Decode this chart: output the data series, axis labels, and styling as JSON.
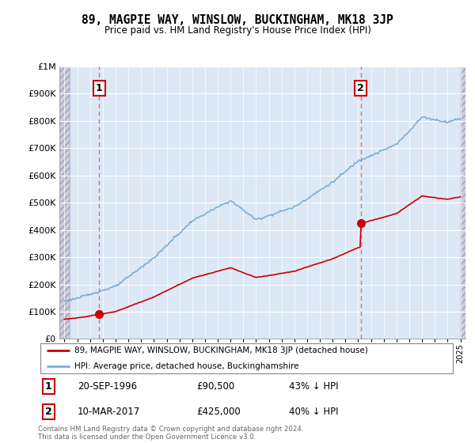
{
  "title": "89, MAGPIE WAY, WINSLOW, BUCKINGHAM, MK18 3JP",
  "subtitle": "Price paid vs. HM Land Registry's House Price Index (HPI)",
  "yticks": [
    0,
    100000,
    200000,
    300000,
    400000,
    500000,
    600000,
    700000,
    800000,
    900000,
    1000000
  ],
  "xlim_start": 1993.6,
  "xlim_end": 2025.4,
  "purchase1_year": 1996.72,
  "purchase1_price": 90500,
  "purchase1_label": "1",
  "purchase1_date": "20-SEP-1996",
  "purchase1_price_str": "£90,500",
  "purchase1_pct": "43% ↓ HPI",
  "purchase2_year": 2017.19,
  "purchase2_price": 425000,
  "purchase2_label": "2",
  "purchase2_date": "10-MAR-2017",
  "purchase2_price_str": "£425,000",
  "purchase2_pct": "40% ↓ HPI",
  "legend_line1": "89, MAGPIE WAY, WINSLOW, BUCKINGHAM, MK18 3JP (detached house)",
  "legend_line2": "HPI: Average price, detached house, Buckinghamshire",
  "footer": "Contains HM Land Registry data © Crown copyright and database right 2024.\nThis data is licensed under the Open Government Licence v3.0.",
  "hpi_color": "#7bafd4",
  "price_color": "#cc0000",
  "dashed_color": "#e87070",
  "annotation_box_color": "#cc0000",
  "plot_bg": "#dce8f5",
  "hatch_bg": "#c8c8d8"
}
